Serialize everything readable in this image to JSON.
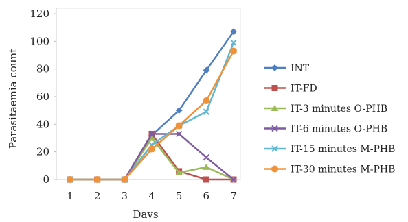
{
  "chart_data": {
    "type": "line",
    "xlabel": "Davs",
    "ylabel": "Parasitaemia count",
    "x": [
      1,
      2,
      3,
      4,
      5,
      6,
      7
    ],
    "ylim": [
      0,
      120
    ],
    "yticks": [
      0,
      20,
      40,
      60,
      80,
      100,
      120
    ],
    "grid": false,
    "legend_position": "right",
    "series": [
      {
        "name": "INT",
        "color": "#4f7fc0",
        "marker": "diamond",
        "values": [
          0,
          0,
          0,
          32,
          50,
          79,
          107
        ]
      },
      {
        "name": "IT-FD",
        "color": "#c0504d",
        "marker": "square",
        "values": [
          0,
          0,
          0,
          33,
          6,
          0,
          0
        ]
      },
      {
        "name": "IT-3 minutes O-PHB",
        "color": "#9bbb59",
        "marker": "triangle",
        "values": [
          0,
          0,
          0,
          30,
          5,
          9,
          0
        ]
      },
      {
        "name": "IT-6 minutes O-PHB",
        "color": "#7f5ca1",
        "marker": "x",
        "values": [
          0,
          0,
          0,
          33,
          33,
          16,
          0
        ]
      },
      {
        "name": "IT-15 minutes M-PHB",
        "color": "#5fb7d2",
        "marker": "x",
        "values": [
          0,
          0,
          0,
          25,
          39,
          49,
          99
        ]
      },
      {
        "name": "IT-30 minutes M-PHB",
        "color": "#f0923a",
        "marker": "circle",
        "values": [
          0,
          0,
          0,
          22,
          39,
          57,
          93
        ]
      }
    ]
  }
}
